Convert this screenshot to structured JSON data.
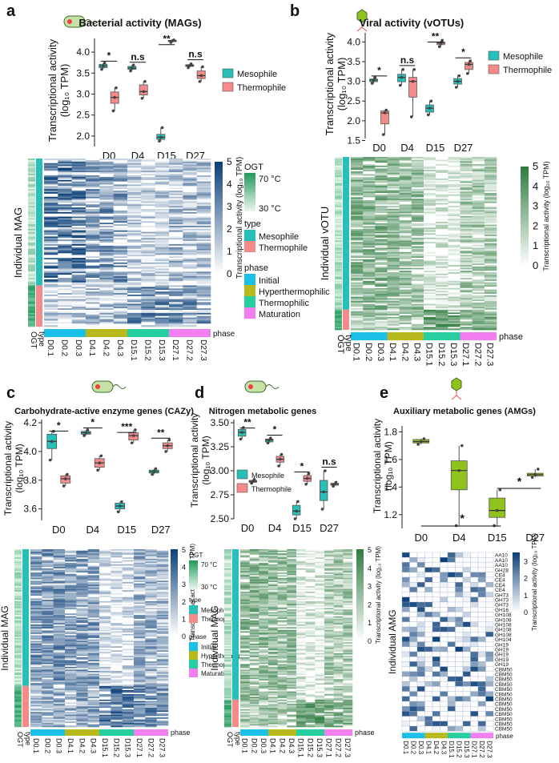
{
  "colors": {
    "mesophile": "#26c0b8",
    "thermophile": "#f48a8a",
    "amg_box": "#8fc21b",
    "phase_initial": "#1bbfe8",
    "phase_hyperthermophilic": "#b8b91c",
    "phase_thermophilic": "#27cfa0",
    "phase_maturation": "#f27ef0",
    "blue_low": "#ffffff",
    "blue_high": "#0b3f78",
    "green_low": "#ffffff",
    "green_high": "#2e7b3f",
    "ogt_low": "#eaf7ef",
    "ogt_high": "#1f9a5a"
  },
  "common": {
    "days": [
      "D0",
      "D4",
      "D15",
      "D27"
    ],
    "samples": [
      "D0.1",
      "D0.2",
      "D0.3",
      "D4.1",
      "D4.2",
      "D4.3",
      "D15.1",
      "D15.2",
      "D15.3",
      "D27.1",
      "D27.2",
      "D27.3"
    ],
    "legend_mesophile": "Mesophile",
    "legend_thermophile": "Thermophile",
    "phase_title": "phase",
    "phase_labels": [
      "Initial",
      "Hyperthermophilic",
      "Thermophilic",
      "Maturation"
    ],
    "type_title": "type",
    "ogt_title": "OGT",
    "ogt_high": "70 °C",
    "ogt_low": "30 °C",
    "row_type": "type",
    "row_ogt": "OGT",
    "phase_row": "phase",
    "colorbar_label": "Transcriptional activity (log₁₀ TPM)"
  },
  "panels": {
    "a": {
      "letter": "a",
      "title": "Bacterial activity (MAGs)",
      "ylabel_1": "Transcriptional activity",
      "ylabel_2": "(log₁₀ TPM)",
      "heat_ylabel": "Individual MAG",
      "colorbar_ticks": [
        "5",
        "4",
        "3",
        "2",
        "1",
        "0"
      ]
    },
    "b": {
      "letter": "b",
      "title": "Viral activity (vOTUs)",
      "ylabel_1": "Transcriptional activity",
      "ylabel_2": "(log₁₀ TPM)",
      "heat_ylabel": "Individual vOTU",
      "colorbar_ticks": [
        "5",
        "4",
        "3",
        "2",
        "1",
        "0"
      ]
    },
    "c": {
      "letter": "c",
      "title": "Carbohydrate-active enzyme genes (CAZy)",
      "ylabel_1": "Transcriptional activity",
      "ylabel_2": "(log₁₀ TPM)",
      "heat_ylabel": "Individual MAG",
      "colorbar_ticks": [
        "5",
        "4",
        "3",
        "2",
        "1",
        "0"
      ]
    },
    "d": {
      "letter": "d",
      "title": "Nitrogen metabolic genes",
      "ylabel_1": "Transcriptional activity",
      "ylabel_2": "(log₁₀ TPM)",
      "heat_ylabel": "Individual MAG",
      "colorbar_ticks": [
        "5",
        "4",
        "3",
        "2",
        "1",
        "0"
      ]
    },
    "e": {
      "letter": "e",
      "title": "Auxiliary metabolic genes (AMGs)",
      "ylabel_1": "Transcriptional activity",
      "ylabel_2": "(log₁₀ TPM)",
      "heat_ylabel": "Individual AMG",
      "colorbar_ticks": [
        "3",
        "2",
        "1",
        "0"
      ],
      "amg_rows": [
        "AA10",
        "AA10",
        "AA10",
        "GH28",
        "CE4",
        "CE4",
        "CE4",
        "CE4",
        "GH73",
        "GH73",
        "GH73",
        "GH16",
        "GH108",
        "GH108",
        "GH108",
        "GH108",
        "GH108",
        "GH104",
        "GH19",
        "GH19",
        "GH19",
        "GH19",
        "GH19",
        "CBM50",
        "CBM50",
        "CBM50",
        "CBM50",
        "CBM50",
        "CBM50",
        "CBM50",
        "CBM50",
        "CBM50",
        "CBM50",
        "CBM50",
        "CBM50",
        "CBM50"
      ]
    }
  },
  "chart_data": [
    {
      "panel": "a",
      "type": "box",
      "title": "Bacterial activity (MAGs)",
      "xlabel": "",
      "ylabel": "Transcriptional activity (log₁₀ TPM)",
      "categories": [
        "D0",
        "D4",
        "D15",
        "D27"
      ],
      "ylim": [
        1.75,
        4.25
      ],
      "yticks": [
        "2.0",
        "2.5",
        "3.0",
        "3.5",
        "4.0"
      ],
      "series": [
        {
          "name": "Mesophile",
          "boxes": [
            {
              "min": 3.59,
              "q1": 3.63,
              "median": 3.67,
              "q3": 3.71,
              "max": 3.74
            },
            {
              "min": 3.55,
              "q1": 3.59,
              "median": 3.62,
              "q3": 3.66,
              "max": 3.69
            },
            {
              "min": 1.88,
              "q1": 1.92,
              "median": 1.97,
              "q3": 2.04,
              "max": 2.2
            },
            {
              "min": 3.63,
              "q1": 3.66,
              "median": 3.68,
              "q3": 3.7,
              "max": 3.72
            }
          ]
        },
        {
          "name": "Thermophile",
          "boxes": [
            {
              "min": 2.6,
              "q1": 2.78,
              "median": 2.92,
              "q3": 3.05,
              "max": 3.15
            },
            {
              "min": 2.9,
              "q1": 2.98,
              "median": 3.06,
              "q3": 3.22,
              "max": 3.3
            },
            {
              "min": 4.23,
              "q1": 4.25,
              "median": 4.27,
              "q3": 4.28,
              "max": 4.29
            },
            {
              "min": 3.3,
              "q1": 3.37,
              "median": 3.44,
              "q3": 3.55,
              "max": 3.65
            }
          ]
        }
      ],
      "significance": [
        "*",
        "n.s",
        "**",
        "n.s"
      ]
    },
    {
      "panel": "b",
      "type": "box",
      "title": "Viral activity (vOTUs)",
      "xlabel": "",
      "ylabel": "Transcriptional activity (log₁₀ TPM)",
      "categories": [
        "D0",
        "D4",
        "D15",
        "D27"
      ],
      "ylim": [
        1.55,
        4.15
      ],
      "yticks": [
        "1.5",
        "2.0",
        "2.5",
        "3.0",
        "3.5",
        "4.0"
      ],
      "series": [
        {
          "name": "Mesophile",
          "boxes": [
            {
              "min": 2.95,
              "q1": 2.99,
              "median": 3.03,
              "q3": 3.06,
              "max": 3.1
            },
            {
              "min": 2.9,
              "q1": 2.99,
              "median": 3.1,
              "q3": 3.18,
              "max": 3.3
            },
            {
              "min": 2.15,
              "q1": 2.22,
              "median": 2.32,
              "q3": 2.4,
              "max": 2.5
            },
            {
              "min": 2.85,
              "q1": 2.93,
              "median": 3.0,
              "q3": 3.07,
              "max": 3.14
            }
          ]
        },
        {
          "name": "Thermophile",
          "boxes": [
            {
              "min": 1.65,
              "q1": 1.92,
              "median": 2.2,
              "q3": 2.25,
              "max": 2.27
            },
            {
              "min": 2.1,
              "q1": 2.6,
              "median": 3.0,
              "q3": 3.1,
              "max": 3.3
            },
            {
              "min": 3.88,
              "q1": 3.93,
              "median": 3.97,
              "q3": 4.0,
              "max": 4.04
            },
            {
              "min": 3.2,
              "q1": 3.3,
              "median": 3.43,
              "q3": 3.48,
              "max": 3.52
            }
          ]
        }
      ],
      "significance": [
        "*",
        "n.s",
        "**",
        "*"
      ]
    },
    {
      "panel": "c",
      "type": "box",
      "title": "Carbohydrate-active enzyme genes (CAZy)",
      "xlabel": "",
      "ylabel": "Transcriptional activity (log₁₀ TPM)",
      "categories": [
        "D0",
        "D4",
        "D15",
        "D27"
      ],
      "ylim": [
        3.52,
        4.2
      ],
      "yticks": [
        "3.6",
        "3.8",
        "4.0",
        "4.2"
      ],
      "series": [
        {
          "name": "Mesophile",
          "boxes": [
            {
              "min": 3.94,
              "q1": 4.02,
              "median": 4.07,
              "q3": 4.12,
              "max": 4.14
            },
            {
              "min": 4.11,
              "q1": 4.12,
              "median": 4.13,
              "q3": 4.14,
              "max": 4.15
            },
            {
              "min": 3.58,
              "q1": 3.6,
              "median": 3.62,
              "q3": 3.64,
              "max": 3.65
            },
            {
              "min": 3.84,
              "q1": 3.85,
              "median": 3.86,
              "q3": 3.87,
              "max": 3.88
            }
          ]
        },
        {
          "name": "Thermophile",
          "boxes": [
            {
              "min": 3.76,
              "q1": 3.78,
              "median": 3.81,
              "q3": 3.83,
              "max": 3.84
            },
            {
              "min": 3.87,
              "q1": 3.89,
              "median": 3.92,
              "q3": 3.95,
              "max": 3.97
            },
            {
              "min": 4.06,
              "q1": 4.08,
              "median": 4.11,
              "q3": 4.13,
              "max": 4.15
            },
            {
              "min": 4.0,
              "q1": 4.02,
              "median": 4.04,
              "q3": 4.06,
              "max": 4.08
            }
          ]
        }
      ],
      "significance": [
        "*",
        "*",
        "***",
        "**"
      ]
    },
    {
      "panel": "d",
      "type": "box",
      "title": "Nitrogen metabolic genes",
      "xlabel": "",
      "ylabel": "Transcriptional activity (log₁₀ TPM)",
      "categories": [
        "D0",
        "D4",
        "D15",
        "D27"
      ],
      "ylim": [
        2.5,
        3.5
      ],
      "yticks": [
        "2.50",
        "2.75",
        "3.00",
        "3.25",
        "3.50"
      ],
      "series": [
        {
          "name": "Mesophile",
          "boxes": [
            {
              "min": 3.33,
              "q1": 3.36,
              "median": 3.4,
              "q3": 3.43,
              "max": 3.45
            },
            {
              "min": 3.29,
              "q1": 3.3,
              "median": 3.32,
              "q3": 3.33,
              "max": 3.34
            },
            {
              "min": 2.5,
              "q1": 2.54,
              "median": 2.58,
              "q3": 2.64,
              "max": 2.68
            },
            {
              "min": 2.6,
              "q1": 2.69,
              "median": 2.78,
              "q3": 2.9,
              "max": 3.0
            }
          ]
        },
        {
          "name": "Thermophile",
          "boxes": [
            {
              "min": 2.87,
              "q1": 2.88,
              "median": 2.89,
              "q3": 2.9,
              "max": 2.91
            },
            {
              "min": 3.05,
              "q1": 3.09,
              "median": 3.12,
              "q3": 3.15,
              "max": 3.17
            },
            {
              "min": 2.86,
              "q1": 2.89,
              "median": 2.92,
              "q3": 2.95,
              "max": 2.97
            },
            {
              "min": 2.84,
              "q1": 2.85,
              "median": 2.86,
              "q3": 2.87,
              "max": 2.88
            }
          ]
        }
      ],
      "significance": [
        "**",
        "*",
        "*",
        "n.s"
      ]
    },
    {
      "panel": "e",
      "type": "box",
      "title": "Auxiliary metabolic genes (AMGs)",
      "xlabel": "",
      "ylabel": "Transcriptional activity (log₁₀ TPM)",
      "categories": [
        "D0",
        "D4",
        "D15",
        "D27"
      ],
      "ylim": [
        1.1,
        1.82
      ],
      "yticks": [
        "1.2",
        "1.4",
        "1.6",
        "1.8"
      ],
      "series": [
        {
          "name": "",
          "boxes": [
            {
              "min": 1.71,
              "q1": 1.72,
              "median": 1.73,
              "q3": 1.745,
              "max": 1.75
            },
            {
              "min": 1.12,
              "q1": 1.38,
              "median": 1.52,
              "q3": 1.59,
              "max": 1.7
            },
            {
              "min": 1.12,
              "q1": 1.18,
              "median": 1.23,
              "q3": 1.32,
              "max": 1.38
            },
            {
              "min": 1.47,
              "q1": 1.48,
              "median": 1.49,
              "q3": 1.5,
              "max": 1.53
            }
          ]
        }
      ],
      "significance": [
        "*",
        "*"
      ]
    }
  ]
}
